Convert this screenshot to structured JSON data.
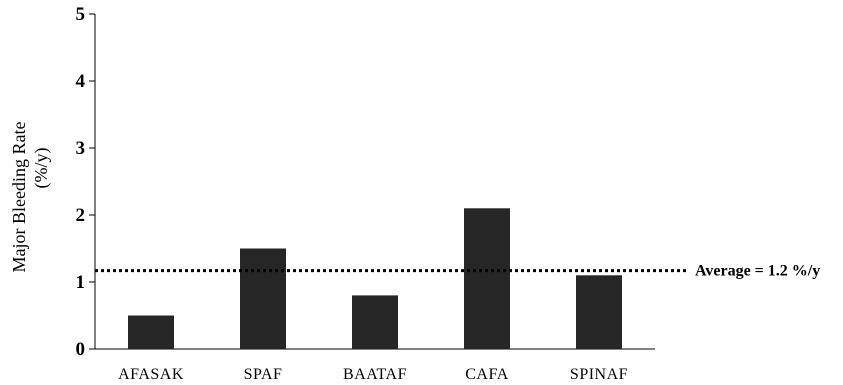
{
  "chart_data": {
    "type": "bar",
    "categories": [
      "AFASAK",
      "SPAF",
      "BAATAF",
      "CAFA",
      "SPINAF"
    ],
    "values": [
      0.5,
      1.5,
      0.8,
      2.1,
      1.1
    ],
    "ylabel_line1": "Major Bleeding Rate",
    "ylabel_line2": "(%/y)",
    "ylim": [
      0,
      5
    ],
    "yticks": [
      "0",
      "1",
      "2",
      "3",
      "4",
      "5"
    ],
    "reference_line": {
      "value": 1.17,
      "style": "dotted",
      "label": "Average = 1.2 %/y"
    },
    "bar_color": "#262626",
    "grid": false,
    "legend": "none"
  }
}
